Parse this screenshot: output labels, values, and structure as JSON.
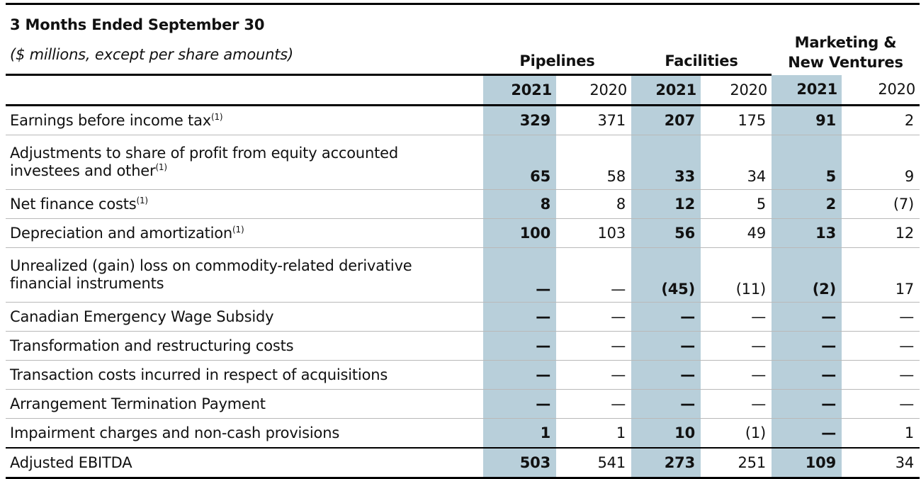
{
  "title": "3 Months Ended September 30",
  "subtitle": "($ millions, except per share amounts)",
  "segments": [
    "Pipelines",
    "Facilities",
    "Marketing &\nNew Ventures"
  ],
  "years": [
    "2021",
    "2020",
    "2021",
    "2020",
    "2021",
    "2020"
  ],
  "rows": [
    {
      "label": "Earnings before income tax",
      "note": "(1)",
      "values": [
        "329",
        "371",
        "207",
        "175",
        "91",
        "2"
      ]
    },
    {
      "label": "Adjustments to share of profit from equity accounted\ninvestees and other",
      "note": "(1)",
      "values": [
        "65",
        "58",
        "33",
        "34",
        "5",
        "9"
      ]
    },
    {
      "label": "Net finance costs",
      "note": "(1)",
      "values": [
        "8",
        "8",
        "12",
        "5",
        "2",
        "(7)"
      ]
    },
    {
      "label": "Depreciation and amortization",
      "note": "(1)",
      "values": [
        "100",
        "103",
        "56",
        "49",
        "13",
        "12"
      ]
    },
    {
      "label": "Unrealized (gain) loss on commodity-related derivative\nfinancial instruments",
      "note": "",
      "values": [
        "—",
        "—",
        "(45)",
        "(11)",
        "(2)",
        "17"
      ]
    },
    {
      "label": "Canadian Emergency Wage Subsidy",
      "note": "",
      "values": [
        "—",
        "—",
        "—",
        "—",
        "—",
        "—"
      ]
    },
    {
      "label": "Transformation and restructuring costs",
      "note": "",
      "values": [
        "—",
        "—",
        "—",
        "—",
        "—",
        "—"
      ]
    },
    {
      "label": "Transaction costs incurred in respect of acquisitions",
      "note": "",
      "values": [
        "—",
        "—",
        "—",
        "—",
        "—",
        "—"
      ]
    },
    {
      "label": "Arrangement Termination Payment",
      "note": "",
      "values": [
        "—",
        "—",
        "—",
        "—",
        "—",
        "—"
      ]
    },
    {
      "label": "Impairment charges and non-cash provisions",
      "note": "",
      "values": [
        "1",
        "1",
        "10",
        "(1)",
        "—",
        "1"
      ]
    }
  ],
  "total": {
    "label": "Adjusted EBITDA",
    "values": [
      "503",
      "541",
      "273",
      "251",
      "109",
      "34"
    ]
  },
  "colors": {
    "highlight_column": "#b8cfda",
    "rule": "#000000",
    "row_divider": "#b9b9b9"
  }
}
